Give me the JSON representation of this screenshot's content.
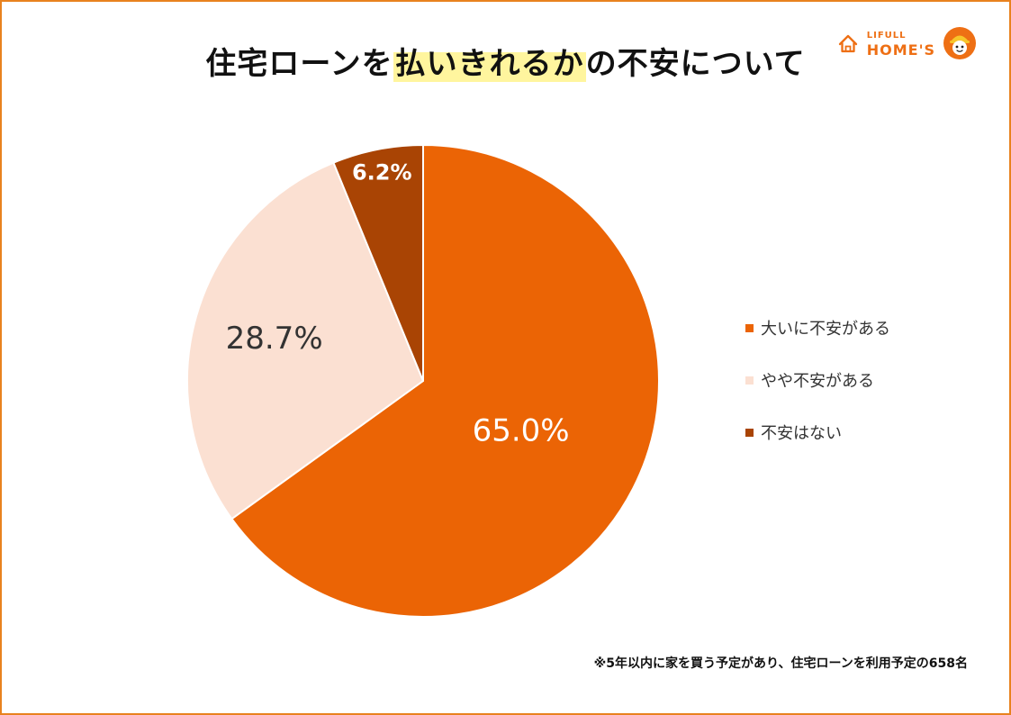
{
  "brand": {
    "top": "LIFULL",
    "bottom": "HOME'S",
    "color": "#ee6f14"
  },
  "title": {
    "before": "住宅ローンを",
    "highlight": "払いきれるか",
    "after": "の不安について"
  },
  "chart_data": {
    "type": "pie",
    "categories": [
      "大いに不安がある",
      "やや不安がある",
      "不安はない"
    ],
    "values": [
      65.0,
      28.7,
      6.2
    ],
    "labels": [
      "65.0%",
      "28.7%",
      "6.2%"
    ],
    "colors": [
      "#eb6405",
      "#fbe0d2",
      "#a94404"
    ],
    "label_colors": [
      "#ffffff",
      "#333333",
      "#ffffff"
    ],
    "legend_position": "right",
    "start_angle": "12 o'clock",
    "direction": "clockwise"
  },
  "legend": {
    "items": [
      {
        "label": "大いに不安がある",
        "color": "#eb6405"
      },
      {
        "label": "やや不安がある",
        "color": "#fbe0d2"
      },
      {
        "label": "不安はない",
        "color": "#a94404"
      }
    ]
  },
  "footnote": "※5年以内に家を買う予定があり、住宅ローンを利用予定の658名",
  "colors": {
    "frame": "#e8821f",
    "highlight": "#fff59e"
  }
}
